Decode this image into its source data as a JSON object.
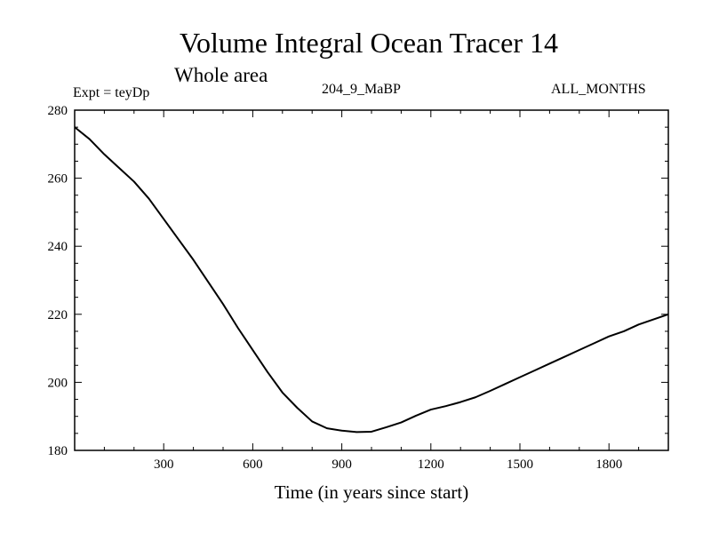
{
  "chart_data": {
    "type": "line",
    "title": "Volume Integral Ocean Tracer 14",
    "subtitle": "Whole area",
    "header_left": "Expt = teyDp",
    "header_center": "204_9_MaBP",
    "header_right": "ALL_MONTHS",
    "xlabel": "Time (in years since start)",
    "ylabel": "",
    "xlim": [
      0,
      2000
    ],
    "ylim": [
      180,
      280
    ],
    "xticks": [
      300,
      600,
      900,
      1200,
      1500,
      1800
    ],
    "yticks": [
      180,
      200,
      220,
      240,
      260,
      280
    ],
    "series": [
      {
        "name": "Tracer 14",
        "x": [
          0,
          50,
          100,
          150,
          200,
          250,
          300,
          350,
          400,
          450,
          500,
          550,
          600,
          650,
          700,
          750,
          800,
          850,
          900,
          950,
          1000,
          1050,
          1100,
          1150,
          1200,
          1250,
          1300,
          1350,
          1400,
          1450,
          1500,
          1550,
          1600,
          1650,
          1700,
          1750,
          1800,
          1850,
          1900,
          1950,
          2000
        ],
        "values": [
          275,
          271.5,
          267,
          263,
          259,
          254,
          248,
          242,
          236,
          229.5,
          223,
          216,
          209.5,
          203,
          197,
          192.5,
          188.5,
          186.5,
          185.8,
          185.4,
          185.5,
          186.8,
          188.2,
          190.2,
          192,
          193,
          194.2,
          195.6,
          197.5,
          199.5,
          201.5,
          203.5,
          205.5,
          207.5,
          209.5,
          211.5,
          213.5,
          215,
          217,
          218.5,
          220
        ]
      }
    ]
  }
}
